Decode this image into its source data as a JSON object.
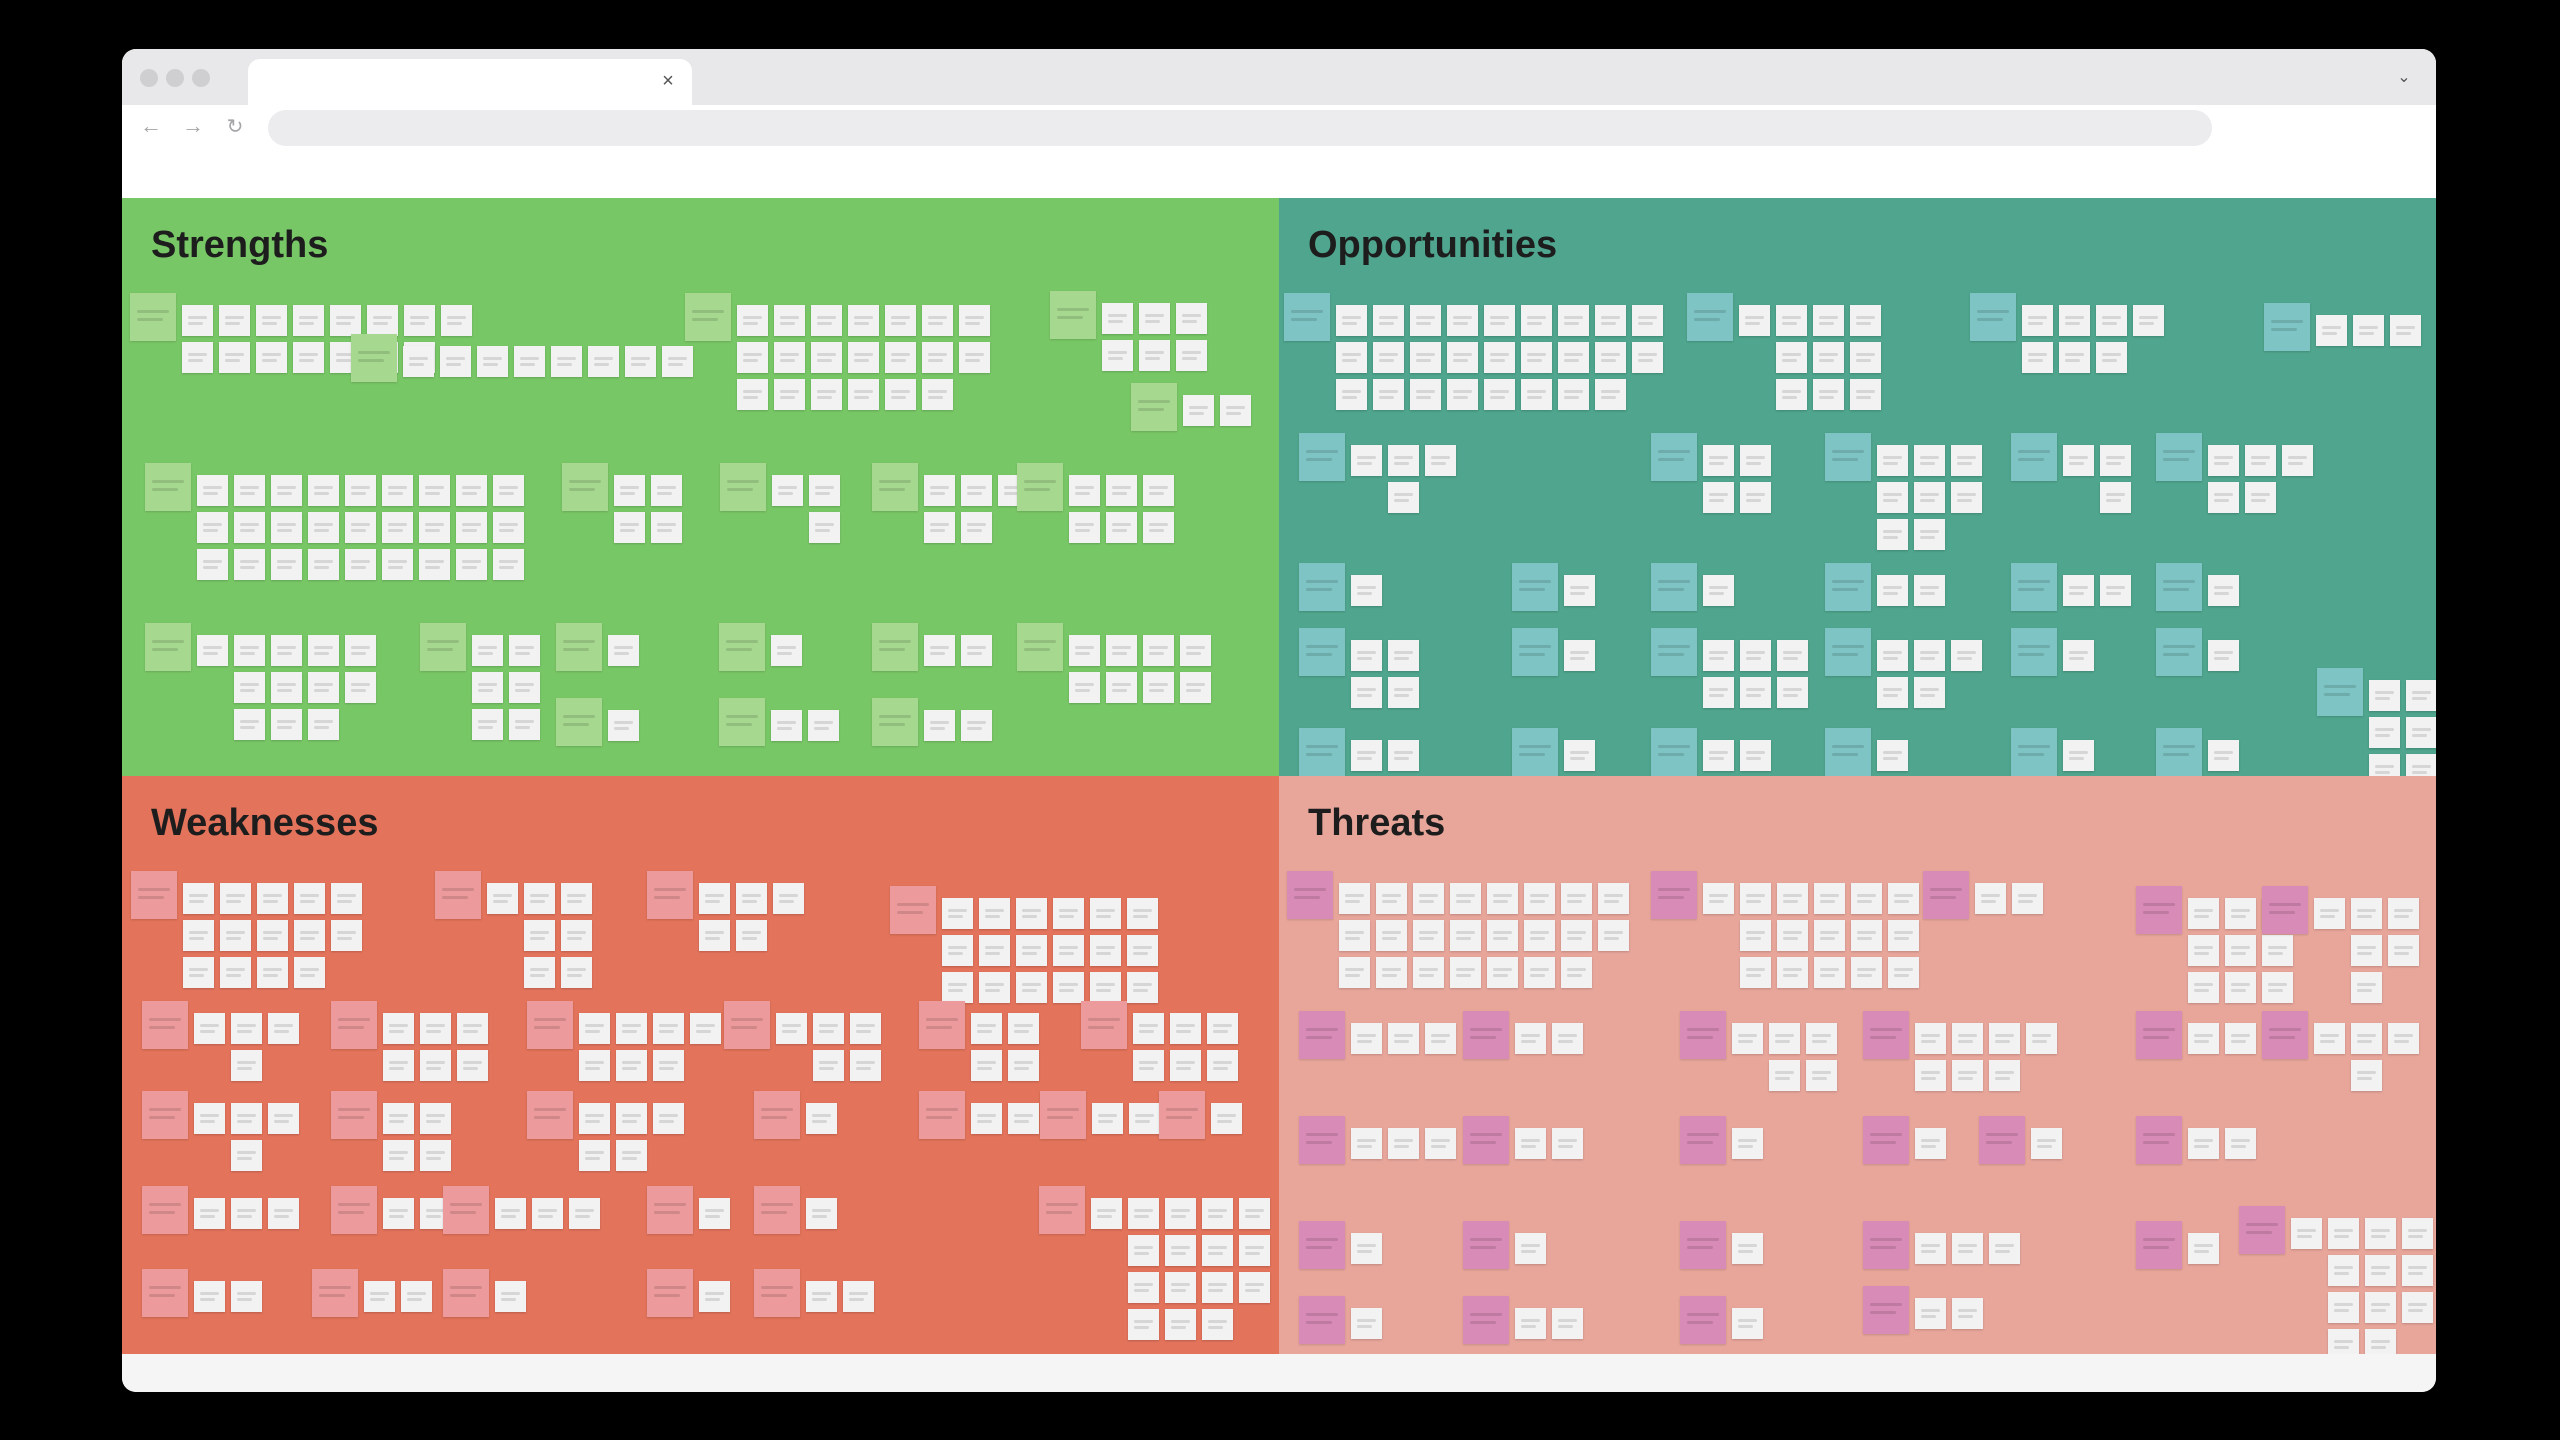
{
  "browser": {
    "tab_title": "",
    "tab_close_label": "×",
    "address_value": "",
    "back_label": "←",
    "forward_label": "→",
    "reload_label": "↻",
    "tab_menu_label": "⌄",
    "icons": {
      "back": "arrow-left-icon",
      "forward": "arrow-right-icon",
      "reload": "reload-icon",
      "close": "close-icon",
      "tab_menu": "chevron-down-icon"
    }
  },
  "board": {
    "quadrants": [
      {
        "key": "strengths",
        "title": "Strengths",
        "color": "#78c766",
        "head_color": "#a6d98f"
      },
      {
        "key": "opportunities",
        "title": "Opportunities",
        "color": "#4fa58d",
        "head_color": "#7ec4c4"
      },
      {
        "key": "weaknesses",
        "title": "Weaknesses",
        "color": "#e3735b",
        "head_color": "#ec9a9b"
      },
      {
        "key": "threats",
        "title": "Threats",
        "color": "#e8a69b",
        "head_color": "#d98bb8"
      }
    ]
  }
}
